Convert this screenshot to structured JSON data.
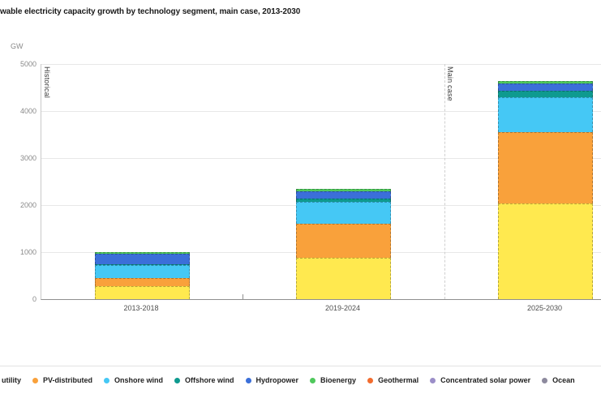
{
  "title": "wable electricity capacity growth by technology segment, main case, 2013-2030",
  "chart_data": {
    "type": "bar",
    "stacked": true,
    "unit_label": "GW",
    "categories": [
      "2013-2018",
      "2019-2024",
      "2025-2030"
    ],
    "series": [
      {
        "name": "utility",
        "color": "#FFE94F",
        "pattern": "dots",
        "values": [
          270,
          880,
          2040
        ]
      },
      {
        "name": "PV-distributed",
        "color": "#F9A13B",
        "values": [
          170,
          720,
          1510
        ]
      },
      {
        "name": "Onshore wind",
        "color": "#45C8F5",
        "values": [
          280,
          470,
          745
        ]
      },
      {
        "name": "Offshore wind",
        "color": "#0E9A8F",
        "values": [
          15,
          75,
          145
        ]
      },
      {
        "name": "Hydropower",
        "color": "#3B6FD9",
        "values": [
          225,
          155,
          155
        ]
      },
      {
        "name": "Bioenergy",
        "color": "#4FC85C",
        "values": [
          40,
          45,
          45
        ]
      },
      {
        "name": "Geothermal",
        "color": "#F26C2E",
        "values": [
          0,
          0,
          0
        ]
      },
      {
        "name": "Concentrated solar power",
        "color": "#9B8EC8",
        "values": [
          0,
          0,
          0
        ]
      },
      {
        "name": "Ocean",
        "color": "#8D8A9E",
        "values": [
          0,
          0,
          0
        ]
      }
    ],
    "ylim": [
      0,
      5000
    ],
    "yticks": [
      0,
      1000,
      2000,
      3000,
      4000,
      5000
    ],
    "grid": "horizontal",
    "annotations": [
      {
        "text": "Historical"
      },
      {
        "text": "Main case"
      }
    ],
    "legend_position": "bottom"
  },
  "legend": {
    "items": [
      {
        "label": "utility",
        "color": "#FFE94F",
        "dot": false
      },
      {
        "label": "PV-distributed",
        "color": "#F9A13B",
        "dot": true
      },
      {
        "label": "Onshore wind",
        "color": "#45C8F5",
        "dot": true
      },
      {
        "label": "Offshore wind",
        "color": "#0E9A8F",
        "dot": true
      },
      {
        "label": "Hydropower",
        "color": "#3B6FD9",
        "dot": true
      },
      {
        "label": "Bioenergy",
        "color": "#4FC85C",
        "dot": true
      },
      {
        "label": "Geothermal",
        "color": "#F26C2E",
        "dot": true
      },
      {
        "label": "Concentrated solar power",
        "color": "#9B8EC8",
        "dot": true
      },
      {
        "label": "Ocean",
        "color": "#8D8A9E",
        "dot": true
      }
    ]
  }
}
